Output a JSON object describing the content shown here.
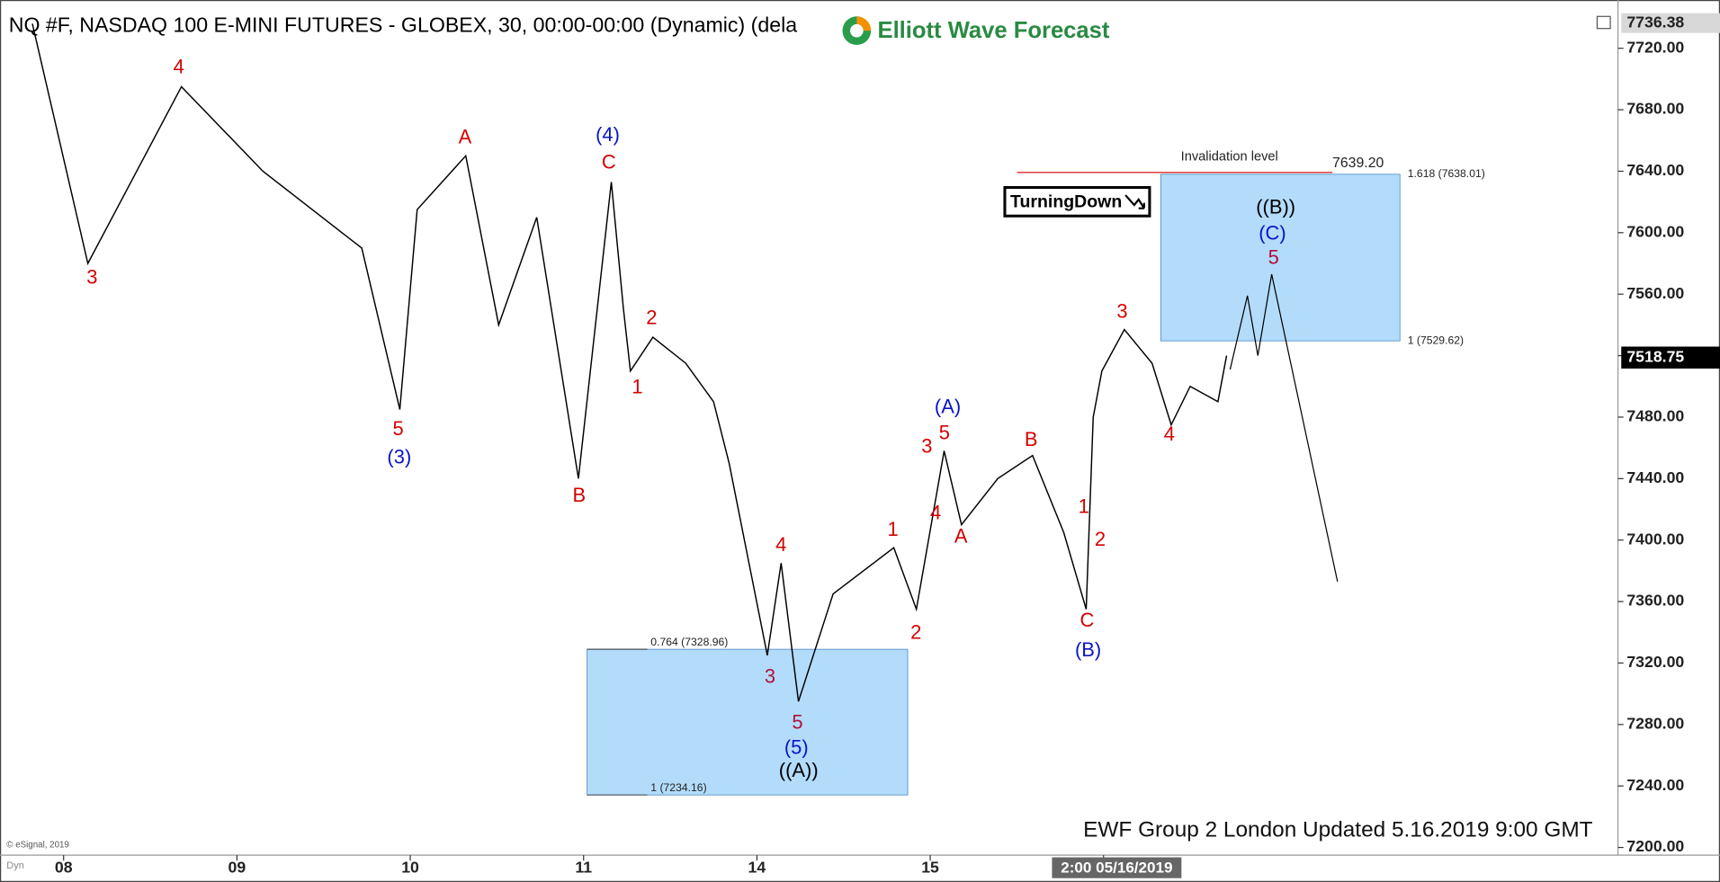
{
  "chart_data": {
    "type": "line",
    "title": "NQ #F, NASDAQ 100 E-MINI FUTURES - GLOBEX, 30, 00:00-00:00 (Dynamic) (dela",
    "brand": "Elliott Wave Forecast",
    "badge": "TurningDown",
    "footer": "EWF Group 2 London Updated 5.16.2019 9:00 GMT",
    "copyright": "© eSignal, 2019",
    "corner_label": "Dyn",
    "x": [
      -0.18,
      0.14,
      0.68,
      1.15,
      1.72,
      1.94,
      2.04,
      2.32,
      2.51,
      2.73,
      2.97,
      3.16,
      3.23,
      3.27,
      3.4,
      3.59,
      3.75,
      3.84,
      4.06,
      4.14,
      4.24,
      4.44,
      4.79,
      4.92,
      5.08,
      5.18,
      5.39,
      5.59,
      5.77,
      5.9,
      5.94,
      5.99,
      6.12,
      6.28,
      6.39,
      6.5,
      6.66,
      6.71
    ],
    "values": [
      7736,
      7580,
      7695,
      7640,
      7590,
      7485,
      7615,
      7650,
      7540,
      7610,
      7440,
      7633,
      7550,
      7510,
      7532,
      7515,
      7490,
      7450,
      7325,
      7385,
      7295,
      7365,
      7395,
      7355,
      7458,
      7410,
      7440,
      7455,
      7405,
      7355,
      7480,
      7510,
      7537,
      7515,
      7475,
      7500,
      7490,
      7520
    ],
    "color": "#000000",
    "projection": {
      "x": [
        6.73,
        6.83,
        6.89,
        6.97,
        7.35
      ],
      "values": [
        7511,
        7559,
        7520,
        7573,
        7373
      ],
      "color": "#000000"
    },
    "xlim": [
      -0.367,
      8.968
    ],
    "ylim": [
      7195,
      7751.4
    ],
    "xticks": [
      {
        "value": 0,
        "label": "08"
      },
      {
        "value": 1,
        "label": "09"
      },
      {
        "value": 2,
        "label": "10"
      },
      {
        "value": 3,
        "label": "11"
      },
      {
        "value": 4,
        "label": "14"
      },
      {
        "value": 5,
        "label": "15"
      },
      {
        "value": 6,
        "label": "2:00 05/16/2019"
      }
    ],
    "yticks": [
      {
        "value": 7200,
        "label": "7200.00"
      },
      {
        "value": 7240,
        "label": "7240.00"
      },
      {
        "value": 7280,
        "label": "7280.00"
      },
      {
        "value": 7320,
        "label": "7320.00"
      },
      {
        "value": 7360,
        "label": "7360.00"
      },
      {
        "value": 7400,
        "label": "7400.00"
      },
      {
        "value": 7440,
        "label": "7440.00"
      },
      {
        "value": 7480,
        "label": "7480.00"
      },
      {
        "value": 7520,
        "label": "7520.00"
      },
      {
        "value": 7560,
        "label": "7560.00"
      },
      {
        "value": 7600,
        "label": "7600.00"
      },
      {
        "value": 7640,
        "label": "7640.00"
      },
      {
        "value": 7680,
        "label": "7680.00"
      },
      {
        "value": 7720,
        "label": "7720.00"
      }
    ],
    "grid": false,
    "high_price": 7736.38,
    "last_price": 7518.75,
    "zones": [
      {
        "x": [
          6.33,
          7.71
        ],
        "values": [
          7638.01,
          7529.62
        ],
        "labels": [
          "1.618 (7638.01)",
          "1 (7529.62)"
        ],
        "color": "#b3dcfb"
      },
      {
        "x": [
          3.02,
          4.87
        ],
        "values": [
          7328.96,
          7234.16
        ],
        "labels": [
          "0.764 (7328.96)",
          "1 (7234.16)"
        ],
        "color": "#b3dcfb"
      }
    ],
    "invalidation": {
      "label": "Invalidation level",
      "value": 7639.2,
      "value_label": "7639.20",
      "x": [
        5.5,
        7.32
      ],
      "color": "#d40000"
    },
    "wave_labels": [
      "4",
      "3",
      "5",
      "(3)",
      "A",
      "(4)",
      "C",
      "B",
      "2",
      "1",
      "4",
      "3",
      "5",
      "(5)",
      "((A))",
      "1",
      "2",
      "(A)",
      "3",
      "5",
      "4",
      "A",
      "B",
      "1",
      "2",
      "C",
      "(B)",
      "3",
      "4",
      "((B))",
      "(C)",
      "5"
    ]
  }
}
